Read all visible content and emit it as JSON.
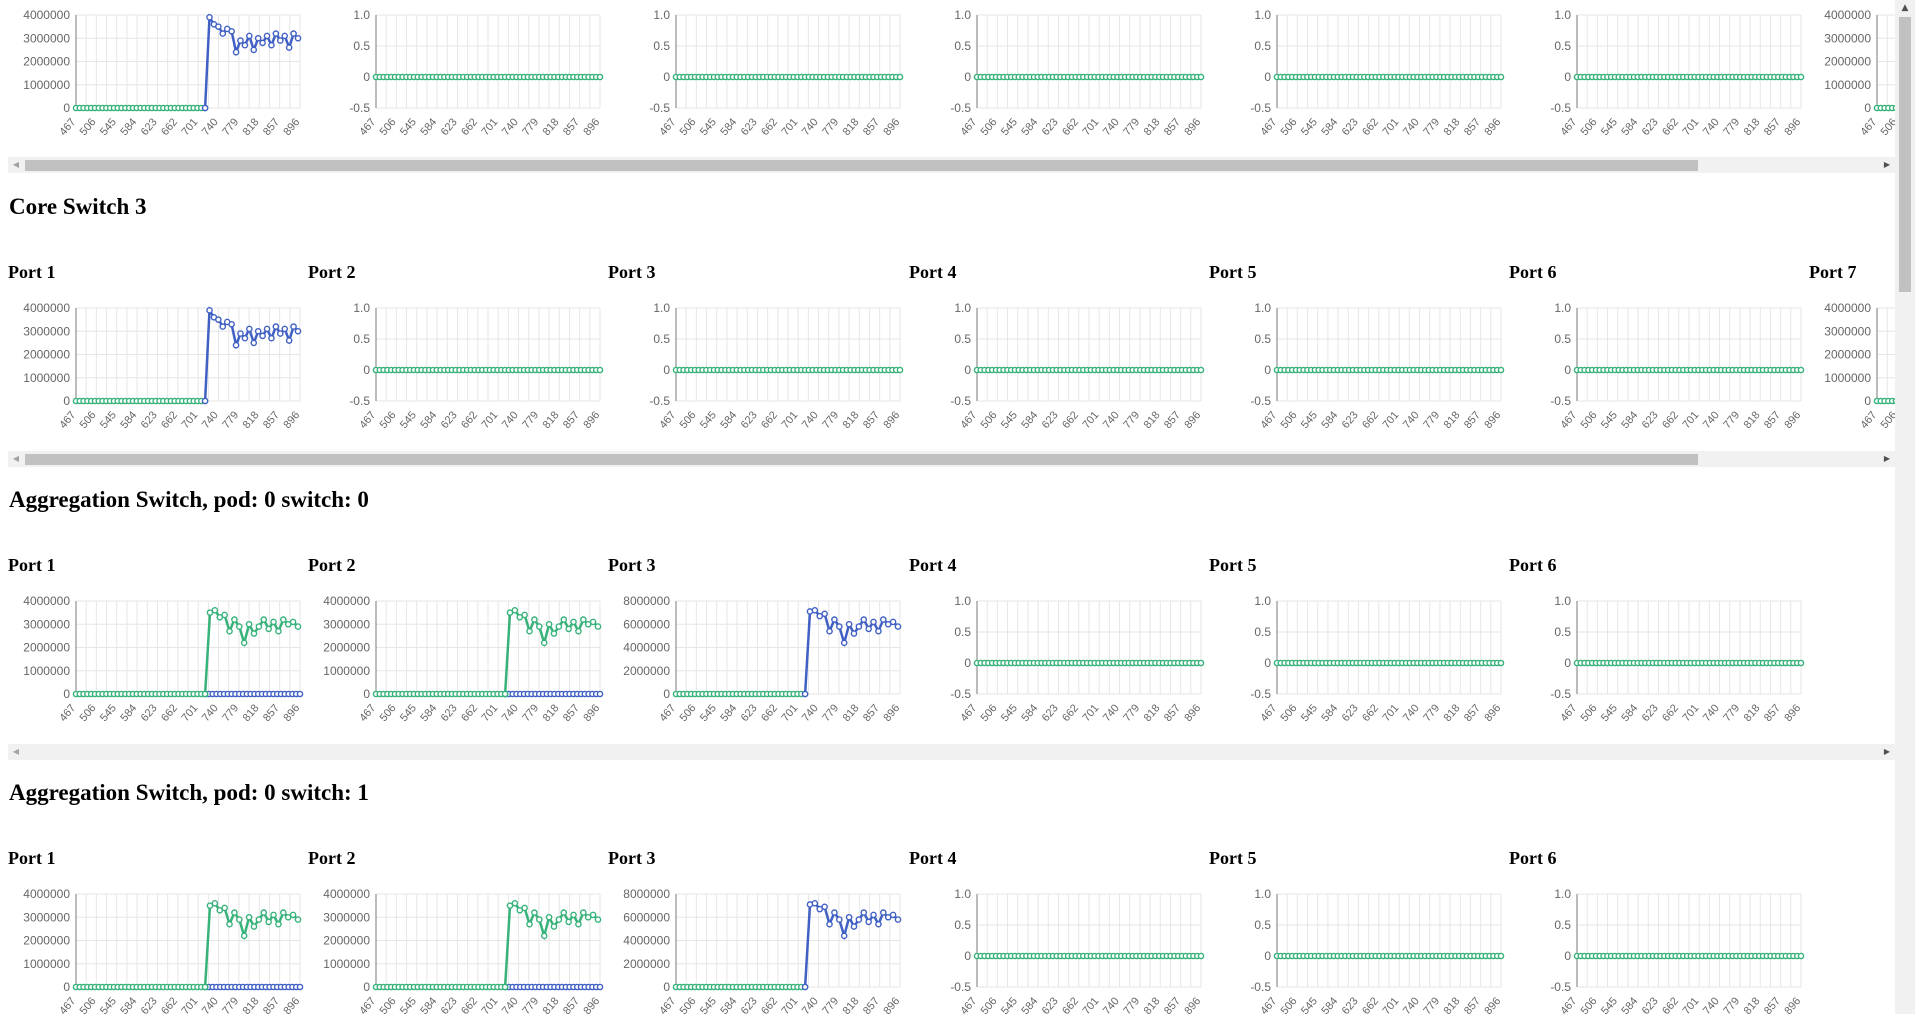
{
  "colors": {
    "blue": "#4060c4",
    "green": "#37b27a",
    "grid": "#e6e6e6",
    "axis": "#7a7a7a",
    "text": "#666666"
  },
  "sections": [
    {
      "title": "",
      "ports": [
        {
          "label": "",
          "chart": "A"
        },
        {
          "label": "",
          "chart": "F"
        },
        {
          "label": "",
          "chart": "F"
        },
        {
          "label": "",
          "chart": "F"
        },
        {
          "label": "",
          "chart": "F"
        },
        {
          "label": "",
          "chart": "F"
        },
        {
          "label": "",
          "chart": "P"
        }
      ],
      "scrollbar": true
    },
    {
      "title": "Core Switch 3",
      "ports": [
        {
          "label": "Port 1",
          "chart": "A"
        },
        {
          "label": "Port 2",
          "chart": "F"
        },
        {
          "label": "Port 3",
          "chart": "F"
        },
        {
          "label": "Port 4",
          "chart": "F"
        },
        {
          "label": "Port 5",
          "chart": "F"
        },
        {
          "label": "Port 6",
          "chart": "F"
        },
        {
          "label": "Port 7",
          "chart": "P"
        }
      ],
      "scrollbar": true
    },
    {
      "title": "Aggregation Switch, pod: 0 switch: 0",
      "ports": [
        {
          "label": "Port 1",
          "chart": "G"
        },
        {
          "label": "Port 2",
          "chart": "G"
        },
        {
          "label": "Port 3",
          "chart": "B"
        },
        {
          "label": "Port 4",
          "chart": "F"
        },
        {
          "label": "Port 5",
          "chart": "F"
        },
        {
          "label": "Port 6",
          "chart": "F"
        }
      ],
      "scrollbar": false
    },
    {
      "title": "Aggregation Switch, pod: 0 switch: 1",
      "ports": [
        {
          "label": "Port 1",
          "chart": "G"
        },
        {
          "label": "Port 2",
          "chart": "G"
        },
        {
          "label": "Port 3",
          "chart": "B"
        },
        {
          "label": "Port 4",
          "chart": "F"
        },
        {
          "label": "Port 5",
          "chart": "F"
        },
        {
          "label": "Port 6",
          "chart": "F"
        }
      ],
      "scrollbar": false
    }
  ],
  "chart_data": {
    "type": "line",
    "note_x": [
      467,
      506,
      545,
      584,
      623,
      662,
      701,
      740,
      779,
      818,
      857,
      896
    ],
    "templates": {
      "A": {
        "yticks": [
          "0",
          "1000000",
          "2000000",
          "3000000",
          "4000000"
        ],
        "ylim": [
          0,
          4000000
        ],
        "flat": {
          "color": "green",
          "value": 0
        },
        "spike": {
          "color": "blue",
          "values": [
            3900000,
            3600000,
            3500000,
            3200000,
            3400000,
            3300000,
            2400000,
            2900000,
            2700000,
            3100000,
            2500000,
            3000000,
            2800000,
            3100000,
            2700000,
            3200000,
            2900000,
            3100000,
            2600000,
            3200000,
            3000000
          ]
        }
      },
      "G": {
        "yticks": [
          "0",
          "1000000",
          "2000000",
          "3000000",
          "4000000"
        ],
        "ylim": [
          0,
          4000000
        ],
        "flat": {
          "color": "green",
          "value": 0
        },
        "tail": {
          "color": "blue",
          "value": 0
        },
        "spike": {
          "color": "green",
          "values": [
            3500000,
            3600000,
            3300000,
            3400000,
            2700000,
            3200000,
            2900000,
            2200000,
            3000000,
            2600000,
            2900000,
            3200000,
            2800000,
            3100000,
            2700000,
            3200000,
            3000000,
            3100000,
            2900000
          ]
        }
      },
      "B": {
        "yticks": [
          "0",
          "2000000",
          "4000000",
          "6000000",
          "8000000"
        ],
        "ylim": [
          0,
          8000000
        ],
        "flat": {
          "color": "green",
          "value": 0
        },
        "spike": {
          "color": "blue",
          "values": [
            7100000,
            7200000,
            6700000,
            6900000,
            5400000,
            6400000,
            5800000,
            4400000,
            6000000,
            5200000,
            5800000,
            6400000,
            5600000,
            6200000,
            5400000,
            6400000,
            6000000,
            6200000,
            5800000
          ]
        }
      },
      "F": {
        "yticks": [
          "-0.5",
          "0",
          "0.5",
          "1.0"
        ],
        "ylim": [
          -0.5,
          1.0
        ],
        "flat": {
          "color": "green",
          "value": 0
        }
      },
      "P": {
        "yticks": [
          "0",
          "1000000",
          "2000000",
          "3000000",
          "4000000"
        ],
        "ylim": [
          0,
          4000000
        ],
        "flat": {
          "color": "green",
          "value": 0
        }
      }
    }
  }
}
